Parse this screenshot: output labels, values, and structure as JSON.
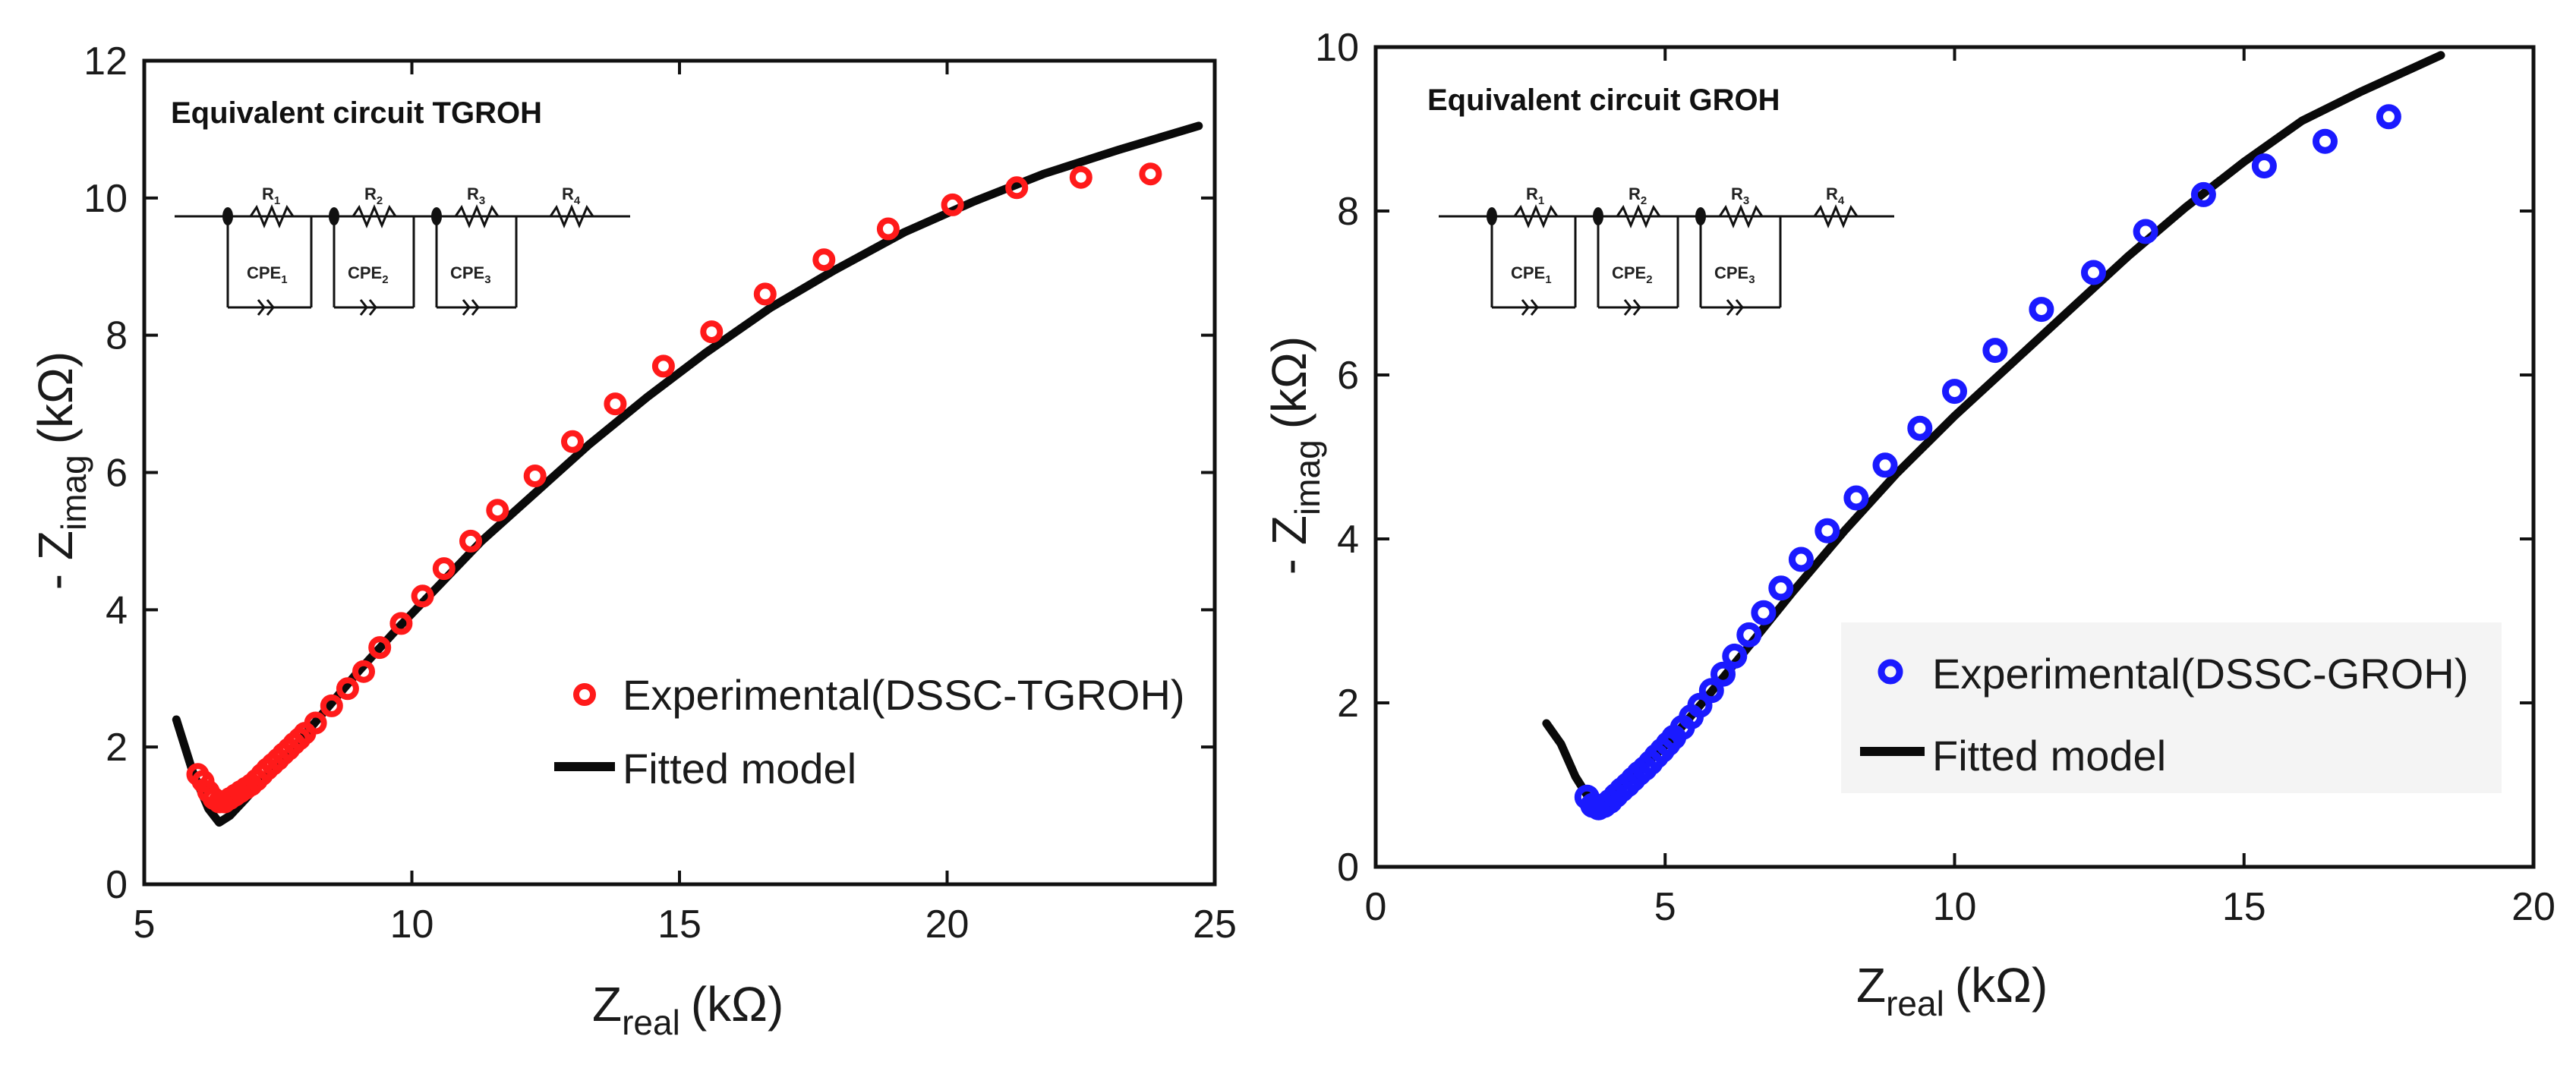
{
  "chart_data": [
    {
      "type": "scatter",
      "title": "",
      "xlabel": "Z",
      "xlabel_sub": "real",
      "xlabel_unit": "(kΩ)",
      "ylabel": "- Z",
      "ylabel_sub": "imag",
      "ylabel_unit": "(kΩ)",
      "xlim": [
        5,
        25
      ],
      "ylim": [
        0,
        12
      ],
      "xticks": [
        5,
        10,
        15,
        20,
        25
      ],
      "yticks": [
        0,
        2,
        4,
        6,
        8,
        10,
        12
      ],
      "circuit_title": "Equivalent circuit TGROH",
      "circuit_elements": {
        "resistors": [
          "R",
          "R",
          "R",
          "R"
        ],
        "resistor_subs": [
          "1",
          "2",
          "3",
          "4"
        ],
        "cpes": [
          "CPE",
          "CPE",
          "CPE"
        ],
        "cpe_subs": [
          "1",
          "2",
          "3"
        ]
      },
      "legend_position": "bottom-right",
      "series": [
        {
          "name": "Experimental(DSSC-TGROH)",
          "color": "#ff1a1a",
          "marker": "circle",
          "x": [
            6.0,
            6.1,
            6.2,
            6.3,
            6.4,
            6.5,
            6.6,
            6.7,
            6.8,
            6.9,
            7.0,
            7.1,
            7.2,
            7.3,
            7.4,
            7.5,
            7.6,
            7.7,
            7.8,
            7.9,
            8.0,
            8.2,
            8.5,
            8.8,
            9.1,
            9.4,
            9.8,
            10.2,
            10.6,
            11.1,
            11.6,
            12.3,
            13.0,
            13.8,
            14.7,
            15.6,
            16.6,
            17.7,
            18.9,
            20.1,
            21.3,
            22.5,
            23.8
          ],
          "y": [
            1.6,
            1.5,
            1.35,
            1.25,
            1.2,
            1.2,
            1.25,
            1.3,
            1.35,
            1.4,
            1.45,
            1.52,
            1.6,
            1.68,
            1.75,
            1.82,
            1.9,
            1.97,
            2.05,
            2.12,
            2.2,
            2.35,
            2.6,
            2.85,
            3.1,
            3.45,
            3.8,
            4.2,
            4.6,
            5.0,
            5.45,
            5.95,
            6.45,
            7.0,
            7.55,
            8.05,
            8.6,
            9.1,
            9.55,
            9.9,
            10.15,
            10.3,
            10.35
          ]
        },
        {
          "name": "Fitted model",
          "color": "#0a0a0a",
          "marker": "line",
          "x": [
            5.6,
            5.9,
            6.2,
            6.4,
            6.6,
            6.9,
            7.3,
            7.8,
            8.4,
            9.0,
            9.7,
            10.5,
            11.3,
            12.3,
            13.3,
            14.4,
            15.5,
            16.7,
            17.9,
            19.2,
            20.5,
            21.8,
            23.2,
            24.7
          ],
          "y": [
            2.4,
            1.65,
            1.1,
            0.9,
            1.0,
            1.25,
            1.6,
            2.0,
            2.55,
            3.1,
            3.7,
            4.35,
            5.0,
            5.7,
            6.4,
            7.1,
            7.75,
            8.4,
            8.95,
            9.5,
            9.95,
            10.35,
            10.7,
            11.05
          ]
        }
      ]
    },
    {
      "type": "scatter",
      "title": "",
      "xlabel": "Z",
      "xlabel_sub": "real",
      "xlabel_unit": "(kΩ)",
      "ylabel": "- Z",
      "ylabel_sub": "imag",
      "ylabel_unit": "(kΩ)",
      "xlim": [
        0,
        20
      ],
      "ylim": [
        0,
        10
      ],
      "xticks": [
        0,
        5,
        10,
        15,
        20
      ],
      "yticks": [
        0,
        2,
        4,
        6,
        8,
        10
      ],
      "circuit_title": "Equivalent circuit GROH",
      "circuit_elements": {
        "resistors": [
          "R",
          "R",
          "R",
          "R"
        ],
        "resistor_subs": [
          "1",
          "2",
          "3",
          "4"
        ],
        "cpes": [
          "CPE",
          "CPE",
          "CPE"
        ],
        "cpe_subs": [
          "1",
          "2",
          "3"
        ]
      },
      "legend_position": "bottom-right",
      "series": [
        {
          "name": "Experimental(DSSC-GROH)",
          "color": "#1a1aff",
          "marker": "circle",
          "x": [
            3.65,
            3.75,
            3.85,
            3.95,
            4.05,
            4.15,
            4.25,
            4.35,
            4.45,
            4.55,
            4.65,
            4.75,
            4.85,
            4.95,
            5.05,
            5.15,
            5.3,
            5.45,
            5.6,
            5.8,
            6.0,
            6.2,
            6.45,
            6.7,
            7.0,
            7.35,
            7.8,
            8.3,
            8.8,
            9.4,
            10.0,
            10.7,
            11.5,
            12.4,
            13.3,
            14.3,
            15.35,
            16.4,
            17.5
          ],
          "y": [
            0.85,
            0.75,
            0.72,
            0.75,
            0.8,
            0.87,
            0.94,
            1.0,
            1.07,
            1.14,
            1.2,
            1.27,
            1.35,
            1.42,
            1.5,
            1.58,
            1.7,
            1.83,
            1.97,
            2.15,
            2.35,
            2.57,
            2.83,
            3.1,
            3.4,
            3.75,
            4.1,
            4.5,
            4.9,
            5.35,
            5.8,
            6.3,
            6.8,
            7.25,
            7.75,
            8.2,
            8.55,
            8.85,
            9.15
          ]
        },
        {
          "name": "Fitted model",
          "color": "#0a0a0a",
          "marker": "line",
          "x": [
            2.95,
            3.2,
            3.45,
            3.7,
            3.9,
            4.2,
            4.6,
            5.1,
            5.7,
            6.4,
            7.2,
            8.1,
            9.0,
            10.0,
            11.0,
            12.0,
            13.0,
            14.0,
            15.0,
            16.0,
            17.0,
            18.4
          ],
          "y": [
            1.75,
            1.5,
            1.1,
            0.82,
            0.78,
            0.92,
            1.2,
            1.55,
            2.05,
            2.65,
            3.35,
            4.1,
            4.8,
            5.5,
            6.15,
            6.8,
            7.45,
            8.05,
            8.6,
            9.1,
            9.45,
            9.9
          ]
        }
      ]
    }
  ]
}
